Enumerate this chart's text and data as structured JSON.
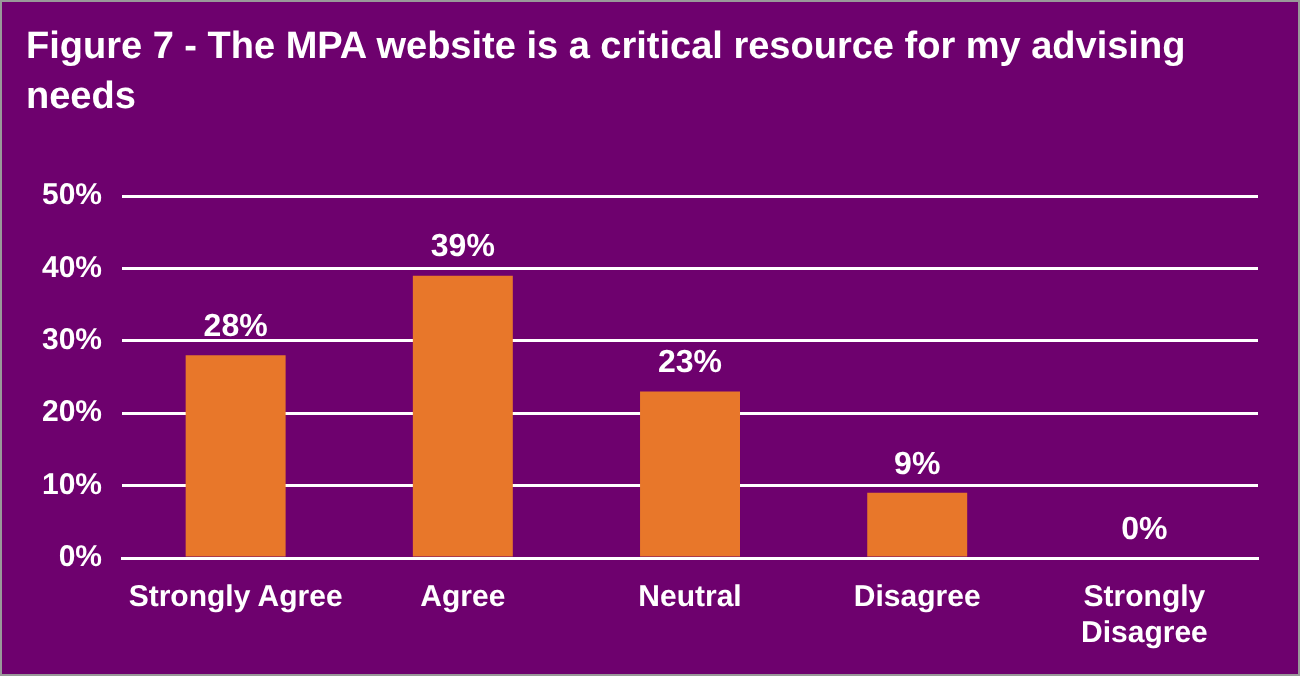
{
  "chart_data": {
    "type": "bar",
    "title": "Figure 7 - The MPA website is a critical resource for my advising needs",
    "categories": [
      "Strongly Agree",
      "Agree",
      "Neutral",
      "Disagree",
      "Strongly Disagree"
    ],
    "values": [
      28,
      39,
      23,
      9,
      0
    ],
    "value_labels": [
      "28%",
      "39%",
      "23%",
      "9%",
      "0%"
    ],
    "color": "#e8772a",
    "ylim": [
      0,
      50
    ],
    "yticks": [
      {
        "value": 0,
        "label": "0%"
      },
      {
        "value": 10,
        "label": "10%"
      },
      {
        "value": 20,
        "label": "20%"
      },
      {
        "value": 30,
        "label": "30%"
      },
      {
        "value": 40,
        "label": "40%"
      },
      {
        "value": 50,
        "label": "50%"
      }
    ],
    "grid": "y"
  }
}
